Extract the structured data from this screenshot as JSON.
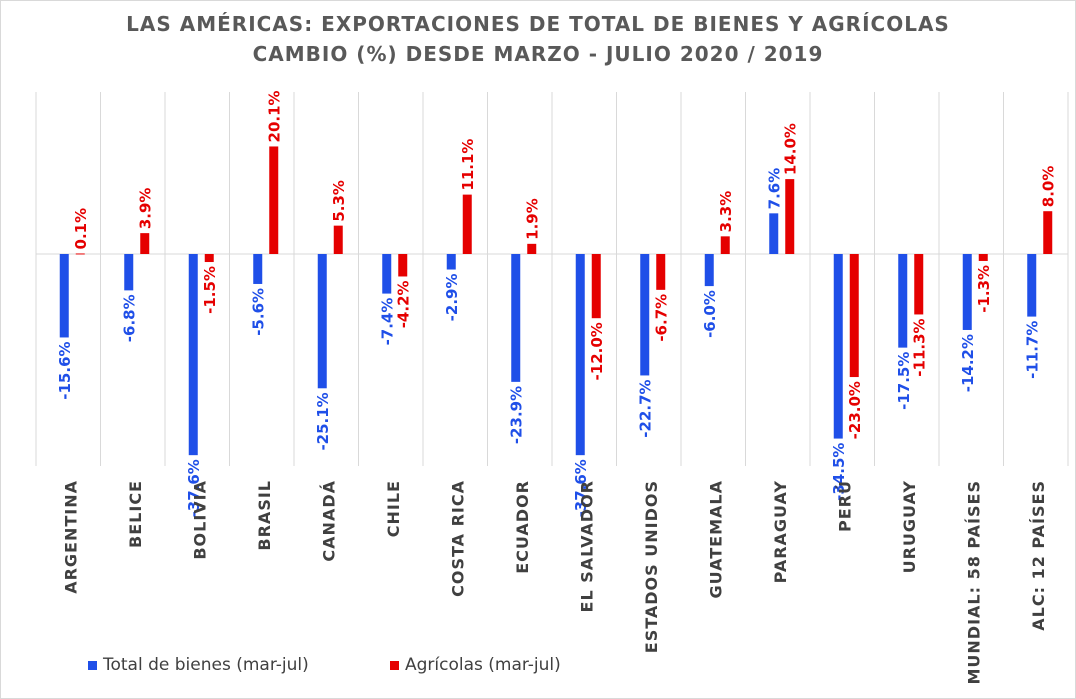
{
  "title": "LAS AMÉRICAS: EXPORTACIONES DE TOTAL DE BIENES Y AGRÍCOLAS",
  "subtitle": "CAMBIO (%) DESDE MARZO - JULIO 2020 / 2019",
  "colors": {
    "total": "#1f4fe8",
    "agri": "#e50000",
    "grid": "#d9d9d9",
    "axis_text": "#404040"
  },
  "legend": [
    {
      "label": "Total de bienes (mar-jul)",
      "color": "#1f4fe8"
    },
    {
      "label": "Agrícolas (mar-jul)",
      "color": "#e50000"
    }
  ],
  "chart_data": {
    "type": "bar",
    "title": "LAS AMÉRICAS: EXPORTACIONES DE TOTAL DE BIENES Y AGRÍCOLAS",
    "subtitle": "CAMBIO (%) DESDE MARZO - JULIO 2020 / 2019",
    "categories": [
      "ARGENTINA",
      "BELICE",
      "BOLIVIA",
      "BRASIL",
      "CANADÁ",
      "CHILE",
      "COSTA RICA",
      "ECUADOR",
      "EL SALVADOR",
      "ESTADOS UNIDOS",
      "GUATEMALA",
      "PARAGUAY",
      "PERÚ",
      "URUGUAY",
      "MUNDIAL: 58 PAÍSES",
      "ALC: 12 PAÍSES"
    ],
    "series": [
      {
        "name": "Total de bienes (mar-jul)",
        "values": [
          -15.6,
          -6.8,
          -37.6,
          -5.6,
          -25.1,
          -7.4,
          -2.9,
          -23.9,
          -37.6,
          -22.7,
          -6.0,
          7.6,
          -34.5,
          -17.5,
          -14.2,
          -11.7
        ],
        "labels": [
          "-15.6%",
          "-6.8%",
          "-37.6%",
          "-5.6%",
          "-25.1%",
          "-7.4%",
          "-2.9%",
          "-23.9%",
          "-37.6%",
          "-22.7%",
          "-6.0%",
          "7.6%",
          "-34.5%",
          "-17.5%",
          "-14.2%",
          "-11.7%"
        ]
      },
      {
        "name": "Agrícolas (mar-jul)",
        "values": [
          0.1,
          3.9,
          -1.5,
          20.1,
          5.3,
          -4.2,
          11.1,
          1.9,
          -12.0,
          -6.7,
          3.3,
          14.0,
          -23.0,
          -11.3,
          -1.3,
          8.0
        ],
        "labels": [
          "0.1%",
          "3.9%",
          "-1.5%",
          "20.1%",
          "5.3%",
          "-4.2%",
          "11.1%",
          "1.9%",
          "-12.0%",
          "-6.7%",
          "3.3%",
          "14.0%",
          "-23.0%",
          "-11.3%",
          "-1.3%",
          "8.0%"
        ]
      }
    ],
    "ylim": [
      -39.5,
      30
    ],
    "legend_position": "bottom-left",
    "grid": "vertical category separators"
  }
}
